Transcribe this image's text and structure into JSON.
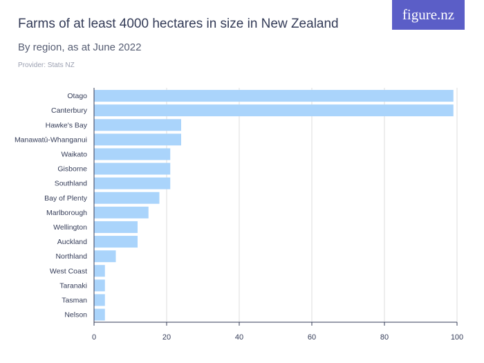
{
  "header": {
    "title": "Farms of at least 4000 hectares in size in New Zealand",
    "subtitle": "By region, as at June 2022",
    "provider": "Provider: Stats NZ",
    "logo_text": "figure.nz"
  },
  "colors": {
    "bar": "#aad4fb",
    "grid": "#dddddd",
    "axis": "#333b57",
    "text": "#333b57",
    "logo_bg": "#5b5ec7"
  },
  "chart_data": {
    "type": "bar",
    "orientation": "horizontal",
    "categories": [
      "Otago",
      "Canterbury",
      "Hawke's Bay",
      "Manawatū-Whanganui",
      "Waikato",
      "Gisborne",
      "Southland",
      "Bay of Plenty",
      "Marlborough",
      "Wellington",
      "Auckland",
      "Northland",
      "West Coast",
      "Taranaki",
      "Tasman",
      "Nelson"
    ],
    "values": [
      99,
      99,
      24,
      24,
      21,
      21,
      21,
      18,
      15,
      12,
      12,
      6,
      3,
      3,
      3,
      3
    ],
    "xlim": [
      0,
      100
    ],
    "xticks": [
      0,
      20,
      40,
      60,
      80,
      100
    ],
    "grid": true,
    "title": "Farms of at least 4000 hectares in size in New Zealand",
    "subtitle": "By region, as at June 2022"
  }
}
